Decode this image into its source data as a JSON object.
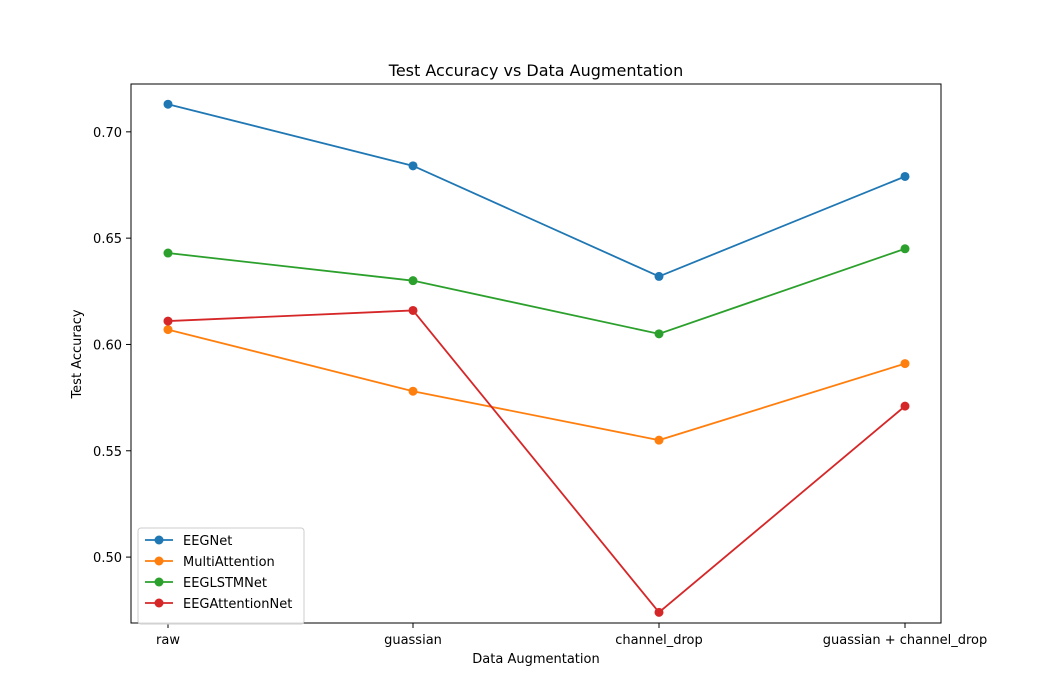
{
  "chart_data": {
    "type": "line",
    "title": "Test Accuracy vs Data Augmentation",
    "xlabel": "Data Augmentation",
    "ylabel": "Test Accuracy",
    "categories": [
      "raw",
      "guassian",
      "channel_drop",
      "guassian + channel_drop"
    ],
    "ylim": [
      0.469,
      0.7225
    ],
    "yticks": [
      0.5,
      0.55,
      0.6,
      0.65,
      0.7
    ],
    "ytick_labels": [
      "0.50",
      "0.55",
      "0.60",
      "0.65",
      "0.70"
    ],
    "legend_position": "lower-left",
    "grid": false,
    "series": [
      {
        "name": "EEGNet",
        "color": "#1f77b4",
        "values": [
          0.713,
          0.684,
          0.632,
          0.679
        ]
      },
      {
        "name": "MultiAttention",
        "color": "#ff7f0e",
        "values": [
          0.607,
          0.578,
          0.555,
          0.591
        ]
      },
      {
        "name": "EEGLSTMNet",
        "color": "#2ca02c",
        "values": [
          0.643,
          0.63,
          0.605,
          0.645
        ]
      },
      {
        "name": "EEGAttentionNet",
        "color": "#d62728",
        "values": [
          0.611,
          0.616,
          0.474,
          0.571
        ]
      }
    ]
  }
}
